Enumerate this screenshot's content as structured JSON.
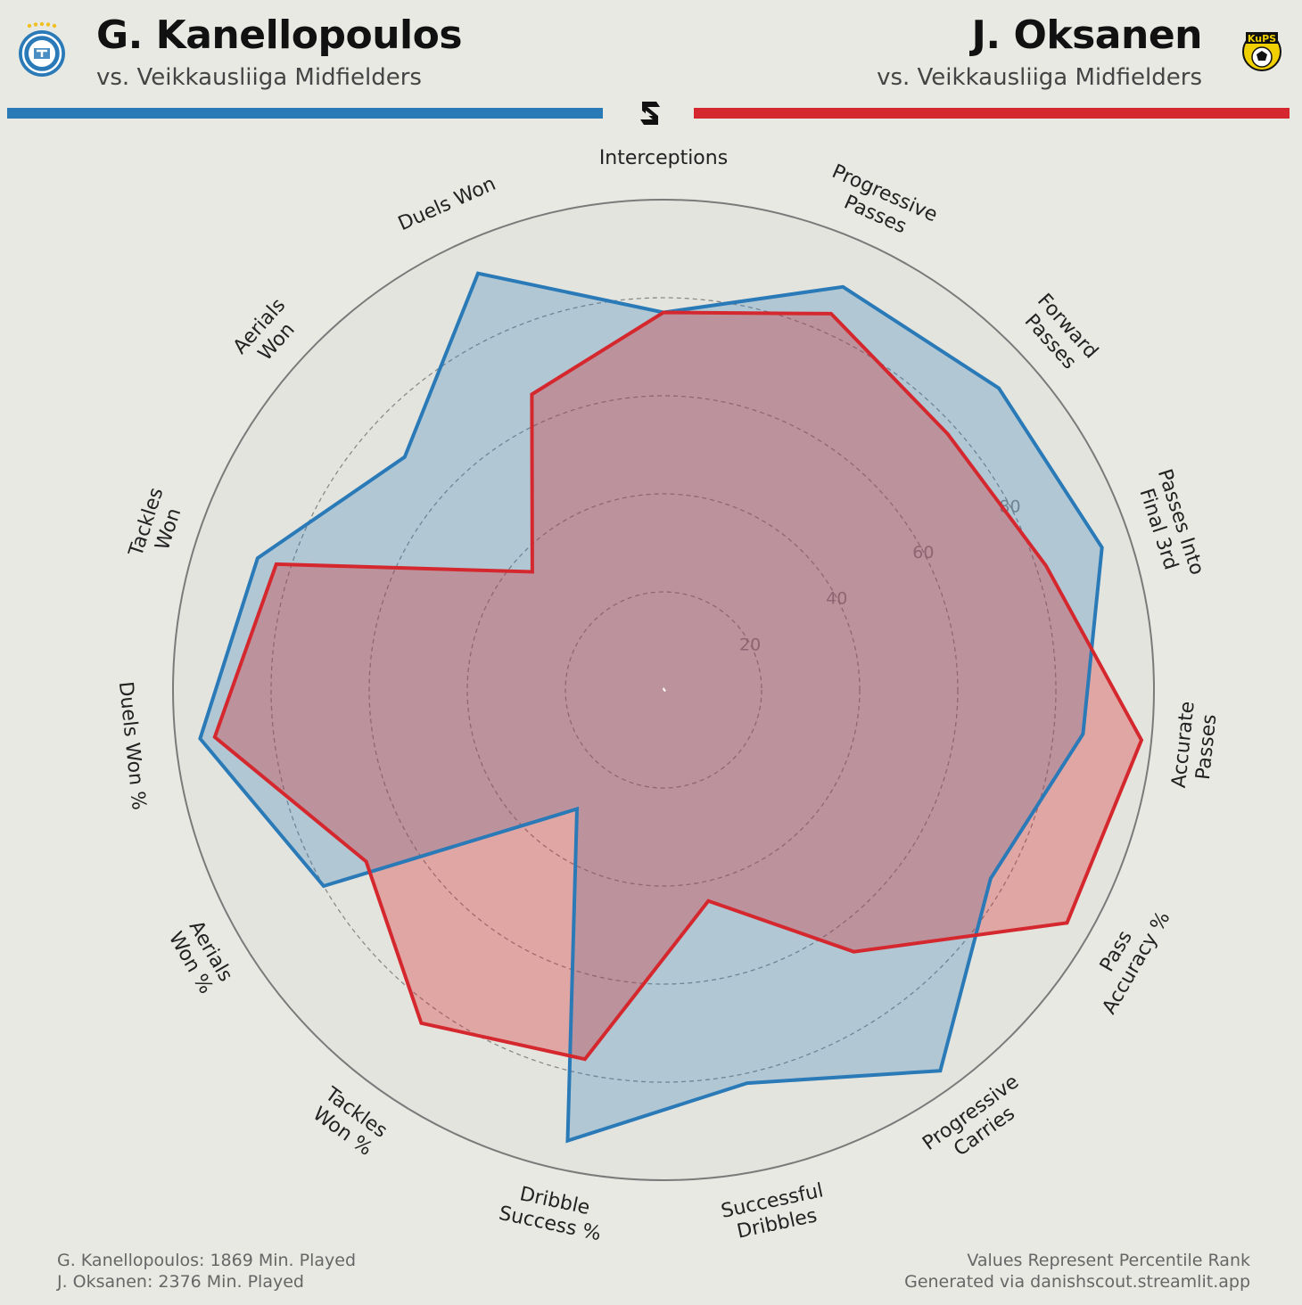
{
  "header": {
    "player1": {
      "name": "G. Kanellopoulos",
      "subtitle": "vs. Veikkausliiga Midfielders"
    },
    "player2": {
      "name": "J. Oksanen",
      "subtitle": "vs. Veikkausliiga Midfielders"
    }
  },
  "badges": {
    "kups_text": "KuPS"
  },
  "footer": {
    "left_line1": "G. Kanellopoulos: 1869 Min. Played",
    "left_line2": "J. Oksanen: 2376 Min. Played",
    "right_line1": "Values Represent Percentile Rank",
    "right_line2": "Generated via danishscout.streamlit.app"
  },
  "colors": {
    "player1": "#2a7ab8",
    "player2": "#d4282e",
    "background": "#e9e9e4"
  },
  "chart_data": {
    "type": "radar",
    "scale": "percentile",
    "rlim": [
      0,
      100
    ],
    "grid": true,
    "ring_ticks": [
      20,
      40,
      60,
      80
    ],
    "categories": [
      [
        "Interceptions"
      ],
      [
        "Progressive",
        "Passes"
      ],
      [
        "Forward",
        "Passes"
      ],
      [
        "Passes Into",
        "Final 3rd"
      ],
      [
        "Accurate",
        "Passes"
      ],
      [
        "Pass",
        "Accuracy %"
      ],
      [
        "Progressive",
        "Carries"
      ],
      [
        "Successful",
        "Dribbles"
      ],
      [
        "Dribble",
        "Success %"
      ],
      [
        "Tackles",
        "Won %"
      ],
      [
        "Aerials",
        "Won %"
      ],
      [
        "Duels Won %"
      ],
      [
        "Tackles",
        "Won"
      ],
      [
        "Aerials",
        "Won"
      ],
      [
        "Duels Won"
      ]
    ],
    "series": [
      {
        "name": "G. Kanellopoulos",
        "color": "#2a7ab8",
        "values": [
          77,
          90,
          92,
          94,
          86,
          77,
          96,
          82,
          94,
          30,
          80,
          95,
          87,
          71,
          93
        ]
      },
      {
        "name": "J. Oksanen",
        "color": "#d4282e",
        "values": [
          77,
          84,
          78,
          82,
          98,
          95,
          66,
          44,
          77,
          84,
          70,
          92,
          83,
          36,
          66
        ]
      }
    ]
  }
}
